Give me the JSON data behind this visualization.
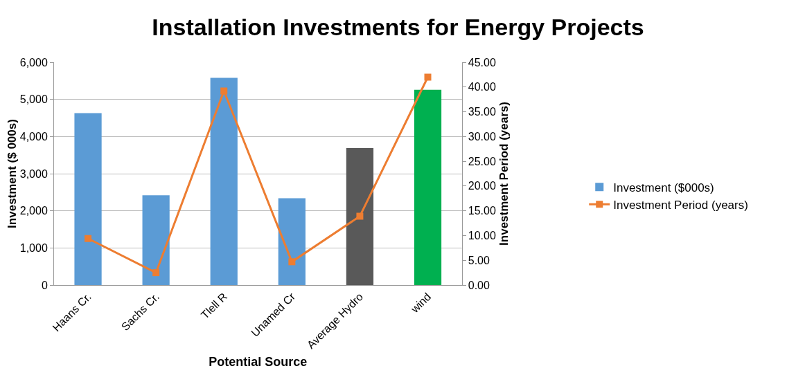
{
  "chart_data": {
    "type": "bar",
    "title": "Installation Investments for Energy Projects",
    "xlabel": "Potential Source",
    "ylabel": "Investment ($ 000s)",
    "y2label": "Investment Period (years)",
    "categories": [
      "Haans Cr.",
      "Sachs Cr.",
      "Tlell R",
      "Unamed Cr",
      "Average Hydro",
      "wind"
    ],
    "series": [
      {
        "name": "Investment ($000s)",
        "colors": [
          "#5b9bd5",
          "#5b9bd5",
          "#5b9bd5",
          "#5b9bd5",
          "#595959",
          "#00b050"
        ],
        "values": [
          4630,
          2420,
          5580,
          2340,
          3690,
          5260
        ]
      },
      {
        "name": "Investment Period (years)",
        "type": "line",
        "axis": "y2",
        "color": "#ed7d31",
        "marker": "square",
        "values": [
          9.4,
          2.5,
          39.2,
          4.7,
          13.9,
          42.0
        ]
      }
    ],
    "ylim": [
      0,
      6000
    ],
    "yticks": [
      0,
      {
        "value": 1000,
        "label": "1,000"
      },
      {
        "value": 2000,
        "label": "2,000"
      },
      {
        "value": 3000,
        "label": "3,000"
      },
      {
        "value": 4000,
        "label": "4,000"
      },
      {
        "value": 5000,
        "label": "5,000"
      },
      {
        "value": 6000,
        "label": "6,000"
      }
    ],
    "y2lim": [
      0,
      45
    ],
    "y2ticks": [
      {
        "value": 0,
        "label": "0.00"
      },
      {
        "value": 5,
        "label": "5.00"
      },
      {
        "value": 10,
        "label": "10.00"
      },
      {
        "value": 15,
        "label": "15.00"
      },
      {
        "value": 20,
        "label": "20.00"
      },
      {
        "value": 25,
        "label": "25.00"
      },
      {
        "value": 30,
        "label": "30.00"
      },
      {
        "value": 35,
        "label": "35.00"
      },
      {
        "value": 40,
        "label": "40.00"
      },
      {
        "value": 45,
        "label": "45.00"
      }
    ],
    "grid": "y",
    "legend": "right"
  }
}
